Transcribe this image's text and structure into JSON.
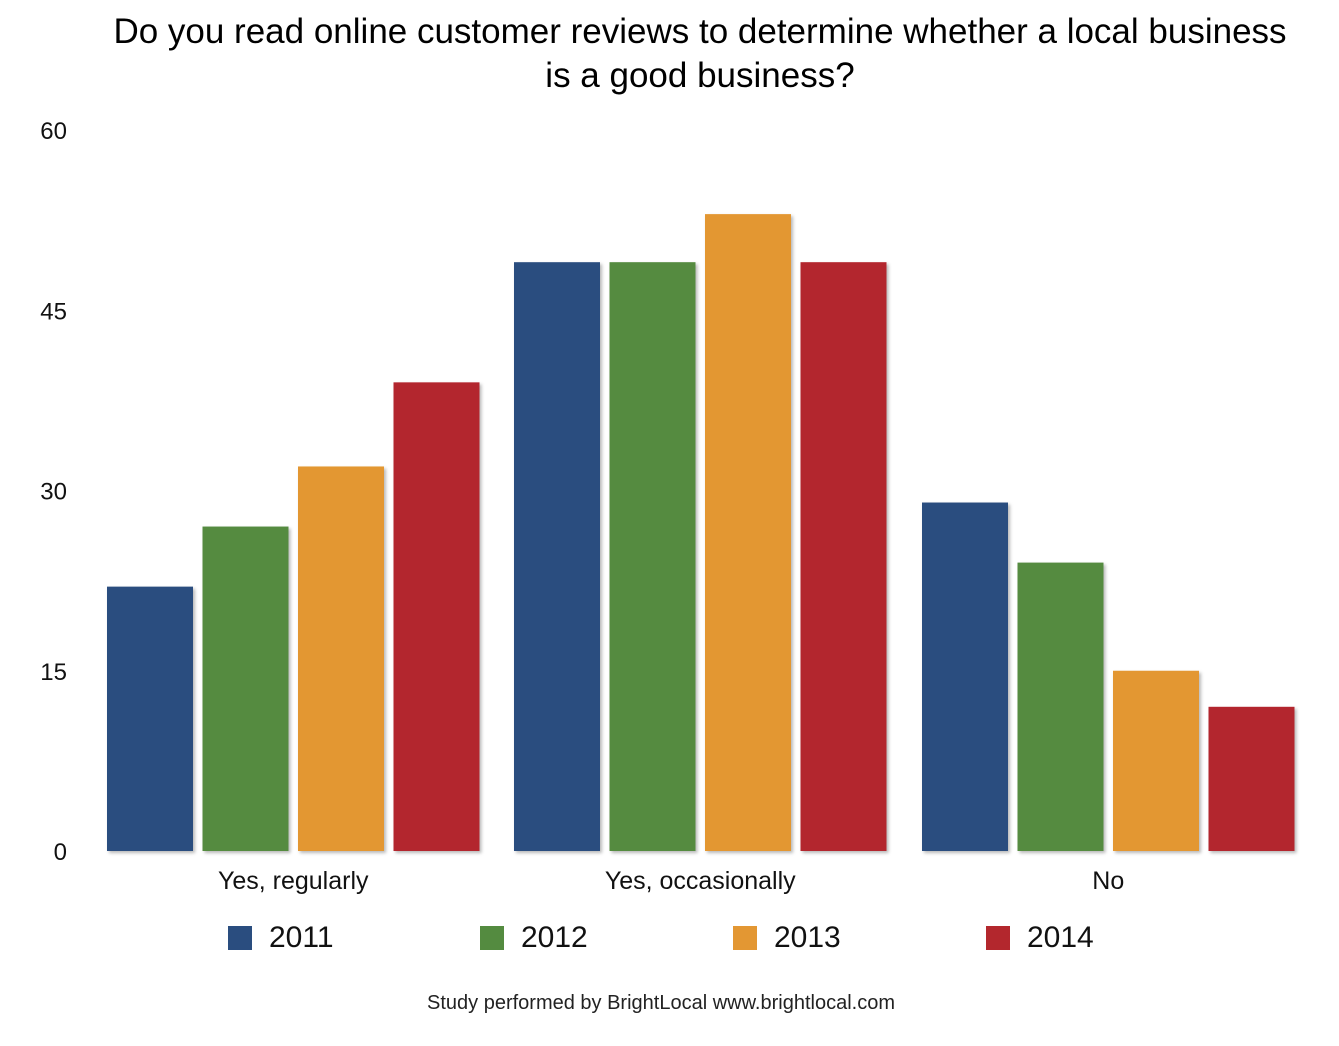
{
  "chart_data": {
    "type": "bar",
    "title": "Do you read online customer reviews to determine whether a local business is a good business?",
    "xlabel": "",
    "ylabel": "",
    "ylim": [
      0,
      60
    ],
    "yticks": [
      "0",
      "15",
      "30",
      "45",
      "60"
    ],
    "grid": false,
    "legend_position": "bottom",
    "categories": [
      "Yes, regularly",
      "Yes, occasionally",
      "No"
    ],
    "series": [
      {
        "name": "2011",
        "color": "#2a4d7f",
        "values": [
          22,
          49,
          29
        ]
      },
      {
        "name": "2012",
        "color": "#548b40",
        "values": [
          27,
          49,
          24
        ]
      },
      {
        "name": "2013",
        "color": "#e39733",
        "values": [
          32,
          53,
          15
        ]
      },
      {
        "name": "2014",
        "color": "#b3272d",
        "values": [
          39,
          49,
          12
        ]
      }
    ]
  },
  "footer": {
    "credit": "Study performed by BrightLocal www.brightlocal.com"
  }
}
